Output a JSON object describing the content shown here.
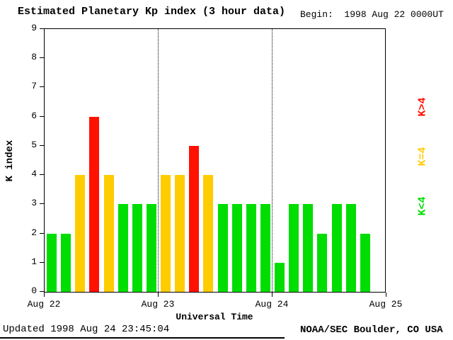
{
  "title": "Estimated Planetary Kp index (3 hour data)",
  "begin_label": "Begin:  1998 Aug 22 0000UT",
  "footer": {
    "updated": "Updated 1998 Aug 24 23:45:04",
    "credit": "NOAA/SEC Boulder, CO USA"
  },
  "chart_data": {
    "type": "bar",
    "title": "Estimated Planetary Kp index (3 hour data)",
    "xlabel": "Universal Time",
    "ylabel": "K index",
    "ylim": [
      0,
      9
    ],
    "y_ticks": [
      0,
      1,
      2,
      3,
      4,
      5,
      6,
      7,
      8,
      9
    ],
    "x_tick_labels": [
      "Aug 22",
      "Aug 23",
      "Aug 24",
      "Aug 25"
    ],
    "bars_per_day": 8,
    "total_slots": 24,
    "values": [
      2,
      2,
      4,
      6,
      4,
      3,
      3,
      3,
      4,
      4,
      5,
      4,
      3,
      3,
      3,
      3,
      1,
      3,
      3,
      2,
      3,
      3,
      2
    ],
    "color_rule": "green if K<4, yellow if K=4, red if K>4",
    "colors": {
      "low": "#00dd00",
      "mid": "#ffcc00",
      "high": "#ff1100"
    },
    "legend": [
      {
        "label": "K>4",
        "color": "#ff1100"
      },
      {
        "label": "K=4",
        "color": "#ffcc00"
      },
      {
        "label": "K<4",
        "color": "#00dd00"
      }
    ],
    "grid": "dotted vertical lines at day boundaries",
    "legend_position": "right, rotated 90deg"
  }
}
